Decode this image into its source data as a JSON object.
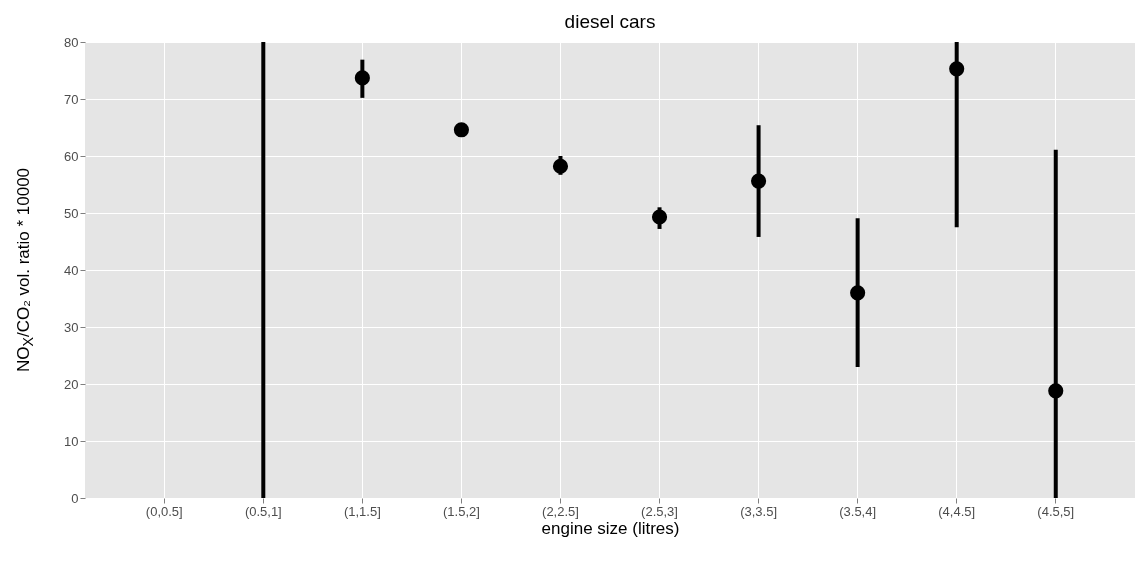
{
  "chart_data": {
    "type": "scatter",
    "title": "diesel cars",
    "xlabel": "engine size (litres)",
    "ylabel": "NO$_{X}$/CO₂ vol. ratio * 10000",
    "categories": [
      "(0,0.5]",
      "(0.5,1]",
      "(1,1.5]",
      "(1.5,2]",
      "(2,2.5]",
      "(2.5,3]",
      "(3,3.5]",
      "(3.5,4]",
      "(4,4.5]",
      "(4.5,5]"
    ],
    "series": [
      {
        "color": "#000000",
        "values": [
          null,
          null,
          73.7,
          64.6,
          58.2,
          49.3,
          55.6,
          36,
          75.3,
          18.8
        ],
        "errors": [
          null,
          null,
          [
            70.2,
            76.9
          ],
          null,
          [
            56.7,
            60
          ],
          [
            47.2,
            51
          ],
          [
            45.8,
            65.4
          ],
          [
            23,
            49.1
          ],
          [
            47.5,
            80
          ],
          [
            0,
            61.1
          ]
        ]
      },
      {
        "type": "bar",
        "color": "#000000",
        "values": [
          null,
          80,
          null,
          null,
          null,
          null,
          null,
          null,
          null,
          null
        ]
      }
    ],
    "marker": "circle",
    "ylim": [
      0,
      80
    ],
    "yticks": [
      0,
      10,
      20,
      30,
      40,
      50,
      60,
      70,
      80
    ],
    "grid": true
  }
}
